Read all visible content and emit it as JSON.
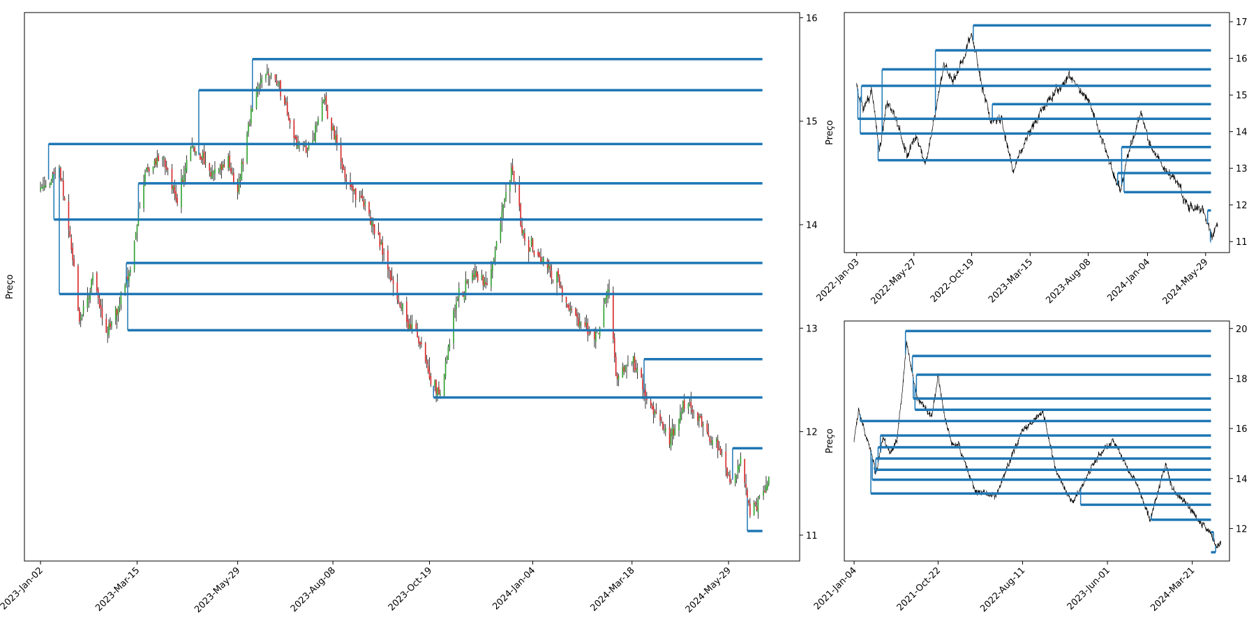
{
  "colors": {
    "levels": "#1f77b4",
    "candle_up": "#2ca02c",
    "candle_down": "#d62728",
    "wick": "#000000",
    "line": "#000000",
    "axes": "#000000"
  },
  "chart_data": [
    {
      "id": "main",
      "type": "candlestick",
      "ylabel": "Preço",
      "y_axis_side": "right",
      "ylim": [
        10.75,
        16.05
      ],
      "yticks": [
        11,
        12,
        13,
        14,
        15,
        16
      ],
      "x_range": [
        "2022-12-21",
        "2024-07-21"
      ],
      "x_data_range": [
        "2023-01-02",
        "2024-06-28"
      ],
      "xticks": [
        "2023-Jan-02",
        "2023-Mar-15",
        "2023-May-29",
        "2023-Aug-08",
        "2023-Oct-19",
        "2024-Jan-04",
        "2024-Mar-18",
        "2024-May-29"
      ],
      "xtick_dates": [
        "2023-01-02",
        "2023-03-15",
        "2023-05-29",
        "2023-08-08",
        "2023-10-19",
        "2024-01-04",
        "2024-03-18",
        "2024-05-29"
      ],
      "path": [
        [
          "2023-01-02",
          14.35
        ],
        [
          "2023-01-16",
          14.55
        ],
        [
          "2023-01-24",
          13.9
        ],
        [
          "2023-01-31",
          13.05
        ],
        [
          "2023-02-10",
          13.5
        ],
        [
          "2023-02-20",
          12.95
        ],
        [
          "2023-03-01",
          13.2
        ],
        [
          "2023-03-10",
          13.55
        ],
        [
          "2023-03-15",
          14.0
        ],
        [
          "2023-03-22",
          14.5
        ],
        [
          "2023-04-03",
          14.7
        ],
        [
          "2023-04-14",
          14.2
        ],
        [
          "2023-04-24",
          14.8
        ],
        [
          "2023-05-08",
          14.5
        ],
        [
          "2023-05-22",
          14.6
        ],
        [
          "2023-05-29",
          14.3
        ],
        [
          "2023-06-05",
          14.9
        ],
        [
          "2023-06-12",
          15.3
        ],
        [
          "2023-06-20",
          15.5
        ],
        [
          "2023-07-03",
          15.2
        ],
        [
          "2023-07-12",
          14.8
        ],
        [
          "2023-07-21",
          14.7
        ],
        [
          "2023-08-01",
          15.2
        ],
        [
          "2023-08-08",
          14.9
        ],
        [
          "2023-08-18",
          14.4
        ],
        [
          "2023-09-01",
          14.2
        ],
        [
          "2023-09-15",
          13.7
        ],
        [
          "2023-10-03",
          13.0
        ],
        [
          "2023-10-12",
          12.9
        ],
        [
          "2023-10-19",
          12.5
        ],
        [
          "2023-10-27",
          12.35
        ],
        [
          "2023-11-07",
          13.2
        ],
        [
          "2023-11-20",
          13.55
        ],
        [
          "2023-12-01",
          13.4
        ],
        [
          "2023-12-12",
          14.1
        ],
        [
          "2023-12-20",
          14.55
        ],
        [
          "2023-12-28",
          13.9
        ],
        [
          "2024-01-08",
          13.7
        ],
        [
          "2024-01-22",
          13.45
        ],
        [
          "2024-02-05",
          13.1
        ],
        [
          "2024-02-20",
          12.9
        ],
        [
          "2024-03-01",
          13.4
        ],
        [
          "2024-03-06",
          12.5
        ],
        [
          "2024-03-18",
          12.7
        ],
        [
          "2024-04-01",
          12.2
        ],
        [
          "2024-04-15",
          11.95
        ],
        [
          "2024-04-29",
          12.3
        ],
        [
          "2024-05-10",
          12.05
        ],
        [
          "2024-05-20",
          11.9
        ],
        [
          "2024-05-31",
          11.5
        ],
        [
          "2024-06-07",
          11.75
        ],
        [
          "2024-06-14",
          11.2
        ],
        [
          "2024-06-21",
          11.35
        ],
        [
          "2024-06-28",
          11.5
        ]
      ],
      "levels": [
        {
          "y": 15.6,
          "start": "2023-06-09"
        },
        {
          "y": 15.3,
          "start": "2023-04-30"
        },
        {
          "y": 14.78,
          "start": "2023-01-08"
        },
        {
          "y": 14.4,
          "start": "2023-03-16"
        },
        {
          "y": 14.05,
          "start": "2023-01-12"
        },
        {
          "y": 13.63,
          "start": "2023-03-07"
        },
        {
          "y": 13.33,
          "start": "2023-01-16"
        },
        {
          "y": 12.98,
          "start": "2023-03-08"
        },
        {
          "y": 12.7,
          "start": "2024-03-27"
        },
        {
          "y": 12.33,
          "start": "2023-10-22"
        },
        {
          "y": 11.84,
          "start": "2024-06-01"
        },
        {
          "y": 11.04,
          "start": "2024-06-12"
        }
      ]
    },
    {
      "id": "top-right",
      "type": "line",
      "ylabel": "Preço",
      "y_axis_side": "right",
      "ylim": [
        10.7,
        17.25
      ],
      "yticks": [
        11,
        12,
        13,
        14,
        15,
        16,
        17
      ],
      "x_range": [
        "2021-12-03",
        "2024-07-28"
      ],
      "x_data_range": [
        "2022-01-03",
        "2024-06-28"
      ],
      "xticks": [
        "2022-Jan-03",
        "2022-May-27",
        "2022-Oct-19",
        "2023-Mar-15",
        "2023-Aug-08",
        "2024-Jan-04",
        "2024-May-29"
      ],
      "xtick_dates": [
        "2022-01-03",
        "2022-05-27",
        "2022-10-19",
        "2023-03-15",
        "2023-08-08",
        "2024-01-04",
        "2024-05-29"
      ],
      "path": [
        [
          "2022-01-03",
          15.3
        ],
        [
          "2022-01-20",
          14.6
        ],
        [
          "2022-02-10",
          15.2
        ],
        [
          "2022-03-01",
          13.5
        ],
        [
          "2022-03-20",
          14.8
        ],
        [
          "2022-04-15",
          14.3
        ],
        [
          "2022-05-10",
          13.3
        ],
        [
          "2022-06-01",
          13.9
        ],
        [
          "2022-06-25",
          13.1
        ],
        [
          "2022-07-20",
          14.5
        ],
        [
          "2022-08-10",
          15.9
        ],
        [
          "2022-09-01",
          15.3
        ],
        [
          "2022-09-25",
          15.9
        ],
        [
          "2022-10-19",
          16.7
        ],
        [
          "2022-11-10",
          15.5
        ],
        [
          "2022-12-05",
          14.3
        ],
        [
          "2023-01-02",
          14.3
        ],
        [
          "2023-01-31",
          13.0
        ],
        [
          "2023-03-15",
          14.0
        ],
        [
          "2023-04-24",
          14.8
        ],
        [
          "2023-06-20",
          15.5
        ],
        [
          "2023-08-08",
          14.9
        ],
        [
          "2023-09-15",
          13.7
        ],
        [
          "2023-10-27",
          12.35
        ],
        [
          "2023-11-20",
          13.55
        ],
        [
          "2023-12-20",
          14.55
        ],
        [
          "2024-01-08",
          13.7
        ],
        [
          "2024-02-20",
          12.9
        ],
        [
          "2024-03-18",
          12.7
        ],
        [
          "2024-04-15",
          11.95
        ],
        [
          "2024-05-20",
          11.9
        ],
        [
          "2024-06-14",
          11.2
        ],
        [
          "2024-06-28",
          11.5
        ]
      ],
      "levels": [
        {
          "y": 16.9,
          "start": "2022-10-23"
        },
        {
          "y": 16.22,
          "start": "2022-07-20"
        },
        {
          "y": 15.7,
          "start": "2022-03-08"
        },
        {
          "y": 15.25,
          "start": "2022-01-15"
        },
        {
          "y": 14.75,
          "start": "2022-12-10"
        },
        {
          "y": 14.35,
          "start": "2022-01-06"
        },
        {
          "y": 13.95,
          "start": "2022-01-12"
        },
        {
          "y": 13.58,
          "start": "2023-10-31"
        },
        {
          "y": 13.22,
          "start": "2022-02-26"
        },
        {
          "y": 12.87,
          "start": "2023-10-21"
        },
        {
          "y": 12.35,
          "start": "2023-11-06"
        },
        {
          "y": 11.85,
          "start": "2024-06-03"
        },
        {
          "y": 11.0,
          "start": "2024-06-10"
        }
      ]
    },
    {
      "id": "bottom-right",
      "type": "line",
      "ylabel": "Preço",
      "y_axis_side": "right",
      "ylim": [
        10.7,
        20.3
      ],
      "yticks": [
        12,
        14,
        16,
        18,
        20
      ],
      "x_range": [
        "2020-12-01",
        "2024-07-28"
      ],
      "x_data_range": [
        "2021-01-04",
        "2024-06-28"
      ],
      "xticks": [
        "2021-Jan-04",
        "2021-Oct-22",
        "2022-Aug-11",
        "2023-Jun-01",
        "2024-Mar-21"
      ],
      "xtick_dates": [
        "2021-01-04",
        "2021-10-22",
        "2022-08-11",
        "2023-06-01",
        "2024-03-21"
      ],
      "path": [
        [
          "2021-01-04",
          15.6
        ],
        [
          "2021-01-20",
          16.8
        ],
        [
          "2021-02-10",
          15.8
        ],
        [
          "2021-03-01",
          15.2
        ],
        [
          "2021-03-20",
          14.2
        ],
        [
          "2021-04-15",
          15.6
        ],
        [
          "2021-05-10",
          15.0
        ],
        [
          "2021-06-01",
          15.5
        ],
        [
          "2021-06-20",
          17.5
        ],
        [
          "2021-07-05",
          19.5
        ],
        [
          "2021-07-20",
          18.5
        ],
        [
          "2021-08-10",
          17.3
        ],
        [
          "2021-09-10",
          16.8
        ],
        [
          "2021-10-01",
          16.5
        ],
        [
          "2021-10-22",
          18.1
        ],
        [
          "2021-11-15",
          16.4
        ],
        [
          "2021-12-10",
          15.4
        ],
        [
          "2022-01-03",
          15.3
        ],
        [
          "2022-03-01",
          13.5
        ],
        [
          "2022-05-10",
          13.3
        ],
        [
          "2022-08-10",
          15.9
        ],
        [
          "2022-10-19",
          16.7
        ],
        [
          "2022-12-05",
          14.3
        ],
        [
          "2023-01-31",
          13.0
        ],
        [
          "2023-04-24",
          14.8
        ],
        [
          "2023-06-20",
          15.5
        ],
        [
          "2023-09-15",
          13.7
        ],
        [
          "2023-10-27",
          12.35
        ],
        [
          "2023-12-20",
          14.55
        ],
        [
          "2024-01-08",
          13.7
        ],
        [
          "2024-03-18",
          12.7
        ],
        [
          "2024-05-20",
          11.9
        ],
        [
          "2024-06-14",
          11.2
        ],
        [
          "2024-06-28",
          11.5
        ]
      ],
      "levels": [
        {
          "y": 19.9,
          "start": "2021-07-01"
        },
        {
          "y": 18.9,
          "start": "2021-07-25"
        },
        {
          "y": 18.15,
          "start": "2021-08-08"
        },
        {
          "y": 17.2,
          "start": "2021-07-28"
        },
        {
          "y": 16.75,
          "start": "2021-08-03"
        },
        {
          "y": 16.3,
          "start": "2021-01-25"
        },
        {
          "y": 15.72,
          "start": "2021-04-05"
        },
        {
          "y": 15.25,
          "start": "2021-03-28"
        },
        {
          "y": 14.8,
          "start": "2021-03-20"
        },
        {
          "y": 14.35,
          "start": "2021-03-15"
        },
        {
          "y": 13.95,
          "start": "2021-03-08"
        },
        {
          "y": 13.4,
          "start": "2021-03-03"
        },
        {
          "y": 12.95,
          "start": "2023-02-28"
        },
        {
          "y": 12.35,
          "start": "2023-10-31"
        },
        {
          "y": 11.85,
          "start": "2024-06-03"
        },
        {
          "y": 11.05,
          "start": "2024-06-10"
        }
      ]
    }
  ]
}
